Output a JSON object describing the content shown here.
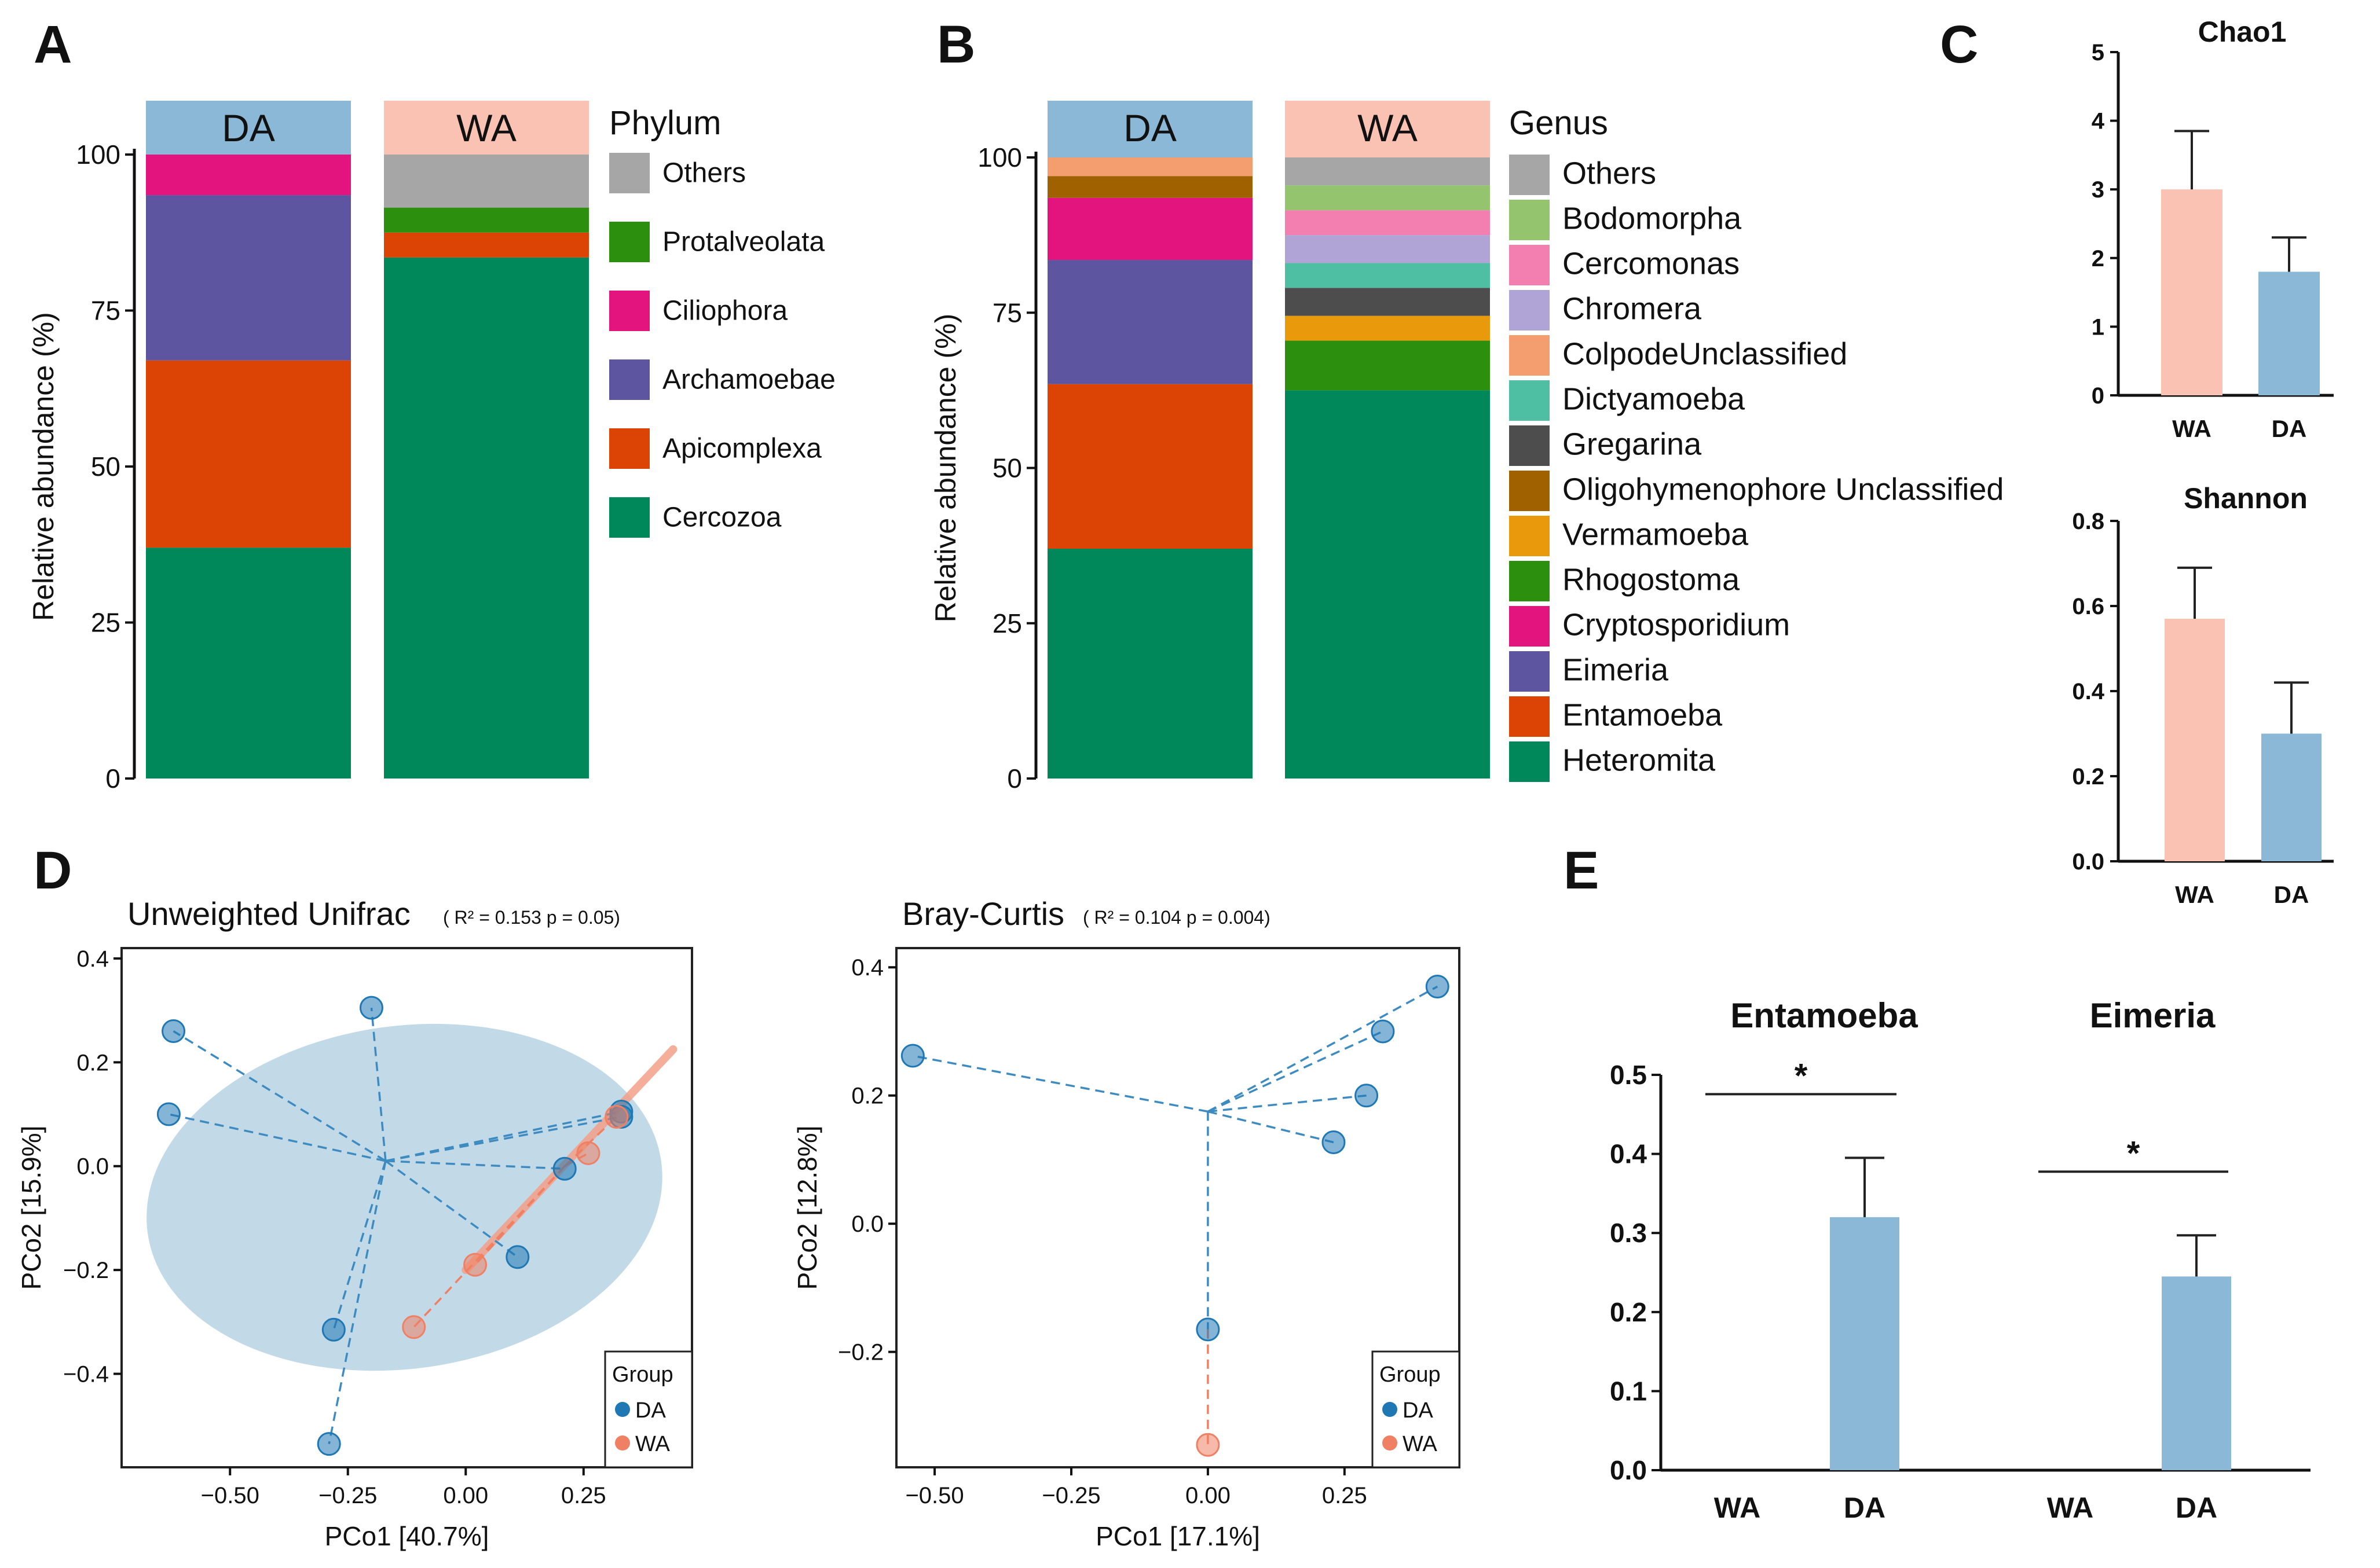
{
  "panels": {
    "A": "A",
    "B": "B",
    "C": "C",
    "D": "D",
    "E": "E"
  },
  "chart_data": [
    {
      "id": "A",
      "type": "bar",
      "stacked": true,
      "ylabel": "Relative abundance (%)",
      "ylim": [
        0,
        100
      ],
      "yticks": [
        0,
        25,
        50,
        75,
        100
      ],
      "categories": [
        "DA",
        "WA"
      ],
      "category_colors": [
        "#8ab8d6",
        "#f9c2b2"
      ],
      "legend_title": "Phylum",
      "series": [
        {
          "name": "Cercozoa",
          "color": "#00875a",
          "values": [
            37,
            83.5
          ]
        },
        {
          "name": "Apicomplexa",
          "color": "#dc4405",
          "values": [
            30,
            4
          ]
        },
        {
          "name": "Archamoebae",
          "color": "#5e55a0",
          "values": [
            26.5,
            0
          ]
        },
        {
          "name": "Ciliophora",
          "color": "#e3147d",
          "values": [
            6.5,
            0
          ]
        },
        {
          "name": "Protalveolata",
          "color": "#2d8f0e",
          "values": [
            0,
            4
          ]
        },
        {
          "name": "Others",
          "color": "#a6a6a6",
          "values": [
            0,
            8.5
          ]
        }
      ]
    },
    {
      "id": "B",
      "type": "bar",
      "stacked": true,
      "ylabel": "Relative abundance (%)",
      "ylim": [
        0,
        100
      ],
      "yticks": [
        0,
        25,
        50,
        75,
        100
      ],
      "categories": [
        "DA",
        "WA"
      ],
      "category_colors": [
        "#8ab8d6",
        "#f9c2b2"
      ],
      "legend_title": "Genus",
      "series": [
        {
          "name": "Heteromita",
          "color": "#00875a",
          "values": [
            37,
            62.5
          ]
        },
        {
          "name": "Entamoeba",
          "color": "#dc4405",
          "values": [
            26.5,
            0
          ]
        },
        {
          "name": "Eimeria",
          "color": "#5e55a0",
          "values": [
            20,
            0
          ]
        },
        {
          "name": "Cryptosporidium",
          "color": "#e3147d",
          "values": [
            10,
            0
          ]
        },
        {
          "name": "Rhogostoma",
          "color": "#2d8f0e",
          "values": [
            0,
            8
          ]
        },
        {
          "name": "Vermamoeba",
          "color": "#e89a0c",
          "values": [
            0,
            4
          ]
        },
        {
          "name": "Oligohymenophore Unclassified",
          "color": "#a06200",
          "values": [
            3.5,
            0
          ]
        },
        {
          "name": "Gregarina",
          "color": "#4d4d4d",
          "values": [
            0,
            4.5
          ]
        },
        {
          "name": "Dictyamoeba",
          "color": "#4fbfa3",
          "values": [
            0,
            4
          ]
        },
        {
          "name": "ColpodeUnclassified",
          "color": "#f49d6e",
          "values": [
            3,
            0
          ]
        },
        {
          "name": "Chromera",
          "color": "#b0a4d6",
          "values": [
            0,
            4.5
          ]
        },
        {
          "name": "Cercomonas",
          "color": "#f27fb0",
          "values": [
            0,
            4
          ]
        },
        {
          "name": "Bodomorpha",
          "color": "#95c46e",
          "values": [
            0,
            4
          ]
        },
        {
          "name": "Others",
          "color": "#a6a6a6",
          "values": [
            0,
            4.5
          ]
        }
      ]
    },
    {
      "id": "C1",
      "type": "bar",
      "title": "Chao1",
      "categories": [
        "WA",
        "DA"
      ],
      "values": [
        3.0,
        1.8
      ],
      "errors": [
        0.85,
        0.5
      ],
      "colors": [
        "#f9c2b2",
        "#8ab8d6"
      ],
      "ylim": [
        0,
        5
      ],
      "yticks": [
        "0",
        "1",
        "2",
        "3",
        "4",
        "5"
      ]
    },
    {
      "id": "C2",
      "type": "bar",
      "title": "Shannon",
      "categories": [
        "WA",
        "DA"
      ],
      "values": [
        0.57,
        0.3
      ],
      "errors": [
        0.12,
        0.12
      ],
      "colors": [
        "#f9c2b2",
        "#8ab8d6"
      ],
      "ylim": [
        0,
        0.8
      ],
      "yticks": [
        "0.0",
        "0.2",
        "0.4",
        "0.6",
        "0.8"
      ]
    },
    {
      "id": "D1",
      "type": "scatter",
      "title": "Unweighted Unifrac",
      "stat": "( R² = 0.153 p = 0.05)",
      "xlabel": "PCo1 [40.7%]",
      "ylabel": "PCo2 [15.9%]",
      "xlim": [
        -0.73,
        0.48
      ],
      "ylim": [
        -0.58,
        0.42
      ],
      "xticks": [
        "−0.50",
        "−0.25",
        "0.00",
        "0.25"
      ],
      "xtick_values": [
        -0.5,
        -0.25,
        0,
        0.25
      ],
      "yticks": [
        "−0.4",
        "−0.2",
        "0.0",
        "0.2",
        "0.4"
      ],
      "ytick_values": [
        -0.4,
        -0.2,
        0,
        0.2,
        0.4
      ],
      "centroids": {
        "DA": [
          -0.17,
          0.01
        ],
        "WA": [
          0.21,
          0.0
        ]
      },
      "ellipse": {
        "cx": -0.13,
        "cy": -0.06,
        "rx": 0.55,
        "ry": 0.33,
        "angle_deg": -8
      },
      "points": [
        {
          "group": "DA",
          "x": -0.62,
          "y": 0.26
        },
        {
          "group": "DA",
          "x": -0.2,
          "y": 0.305
        },
        {
          "group": "DA",
          "x": -0.63,
          "y": 0.1
        },
        {
          "group": "DA",
          "x": 0.33,
          "y": 0.105
        },
        {
          "group": "DA",
          "x": 0.33,
          "y": 0.095
        },
        {
          "group": "DA",
          "x": 0.21,
          "y": -0.005
        },
        {
          "group": "DA",
          "x": 0.11,
          "y": -0.175
        },
        {
          "group": "DA",
          "x": -0.28,
          "y": -0.315
        },
        {
          "group": "DA",
          "x": -0.29,
          "y": -0.535
        },
        {
          "group": "WA",
          "x": 0.32,
          "y": 0.095
        },
        {
          "group": "WA",
          "x": 0.26,
          "y": 0.025
        },
        {
          "group": "WA",
          "x": 0.02,
          "y": -0.19
        },
        {
          "group": "WA",
          "x": -0.11,
          "y": -0.31
        }
      ],
      "legend_title": "Group",
      "legend": [
        {
          "label": "DA",
          "color": "#1f78b4"
        },
        {
          "label": "WA",
          "color": "#f08064"
        }
      ]
    },
    {
      "id": "D2",
      "type": "scatter",
      "title": "Bray-Curtis",
      "stat": "( R² = 0.104 p = 0.004)",
      "xlabel": "PCo1 [17.1%]",
      "ylabel": "PCo2 [12.8%]",
      "xlim": [
        -0.57,
        0.46
      ],
      "ylim": [
        -0.38,
        0.43
      ],
      "xticks": [
        "−0.50",
        "−0.25",
        "0.00",
        "0.25"
      ],
      "xtick_values": [
        -0.5,
        -0.25,
        0,
        0.25
      ],
      "yticks": [
        "−0.2",
        "0.0",
        "0.2",
        "0.4"
      ],
      "ytick_values": [
        -0.2,
        0,
        0.2,
        0.4
      ],
      "centroids": {
        "DA": [
          0.0,
          0.175
        ],
        "WA": [
          0.0,
          -0.165
        ]
      },
      "points": [
        {
          "group": "DA",
          "x": -0.54,
          "y": 0.262
        },
        {
          "group": "DA",
          "x": 0.42,
          "y": 0.37
        },
        {
          "group": "DA",
          "x": 0.32,
          "y": 0.3
        },
        {
          "group": "DA",
          "x": 0.29,
          "y": 0.2
        },
        {
          "group": "DA",
          "x": 0.23,
          "y": 0.127
        },
        {
          "group": "DA",
          "x": 0.0,
          "y": -0.165
        },
        {
          "group": "WA",
          "x": 0.0,
          "y": -0.345
        }
      ],
      "legend_title": "Group",
      "legend": [
        {
          "label": "DA",
          "color": "#1f78b4"
        },
        {
          "label": "WA",
          "color": "#f08064"
        }
      ]
    },
    {
      "id": "E",
      "type": "bar",
      "groups": [
        {
          "title": "Entamoeba",
          "categories": [
            "WA",
            "DA"
          ],
          "values": [
            0.0,
            0.32
          ],
          "errors": [
            0,
            0.075
          ],
          "significance": "*"
        },
        {
          "title": "Eimeria",
          "categories": [
            "WA",
            "DA"
          ],
          "values": [
            0.0,
            0.245
          ],
          "errors": [
            0,
            0.052
          ],
          "significance": "*"
        }
      ],
      "colors": [
        "#f9c2b2",
        "#8ab8d6"
      ],
      "ylim": [
        0,
        0.5
      ],
      "yticks": [
        "0.0",
        "0.1",
        "0.2",
        "0.3",
        "0.4",
        "0.5"
      ]
    }
  ]
}
